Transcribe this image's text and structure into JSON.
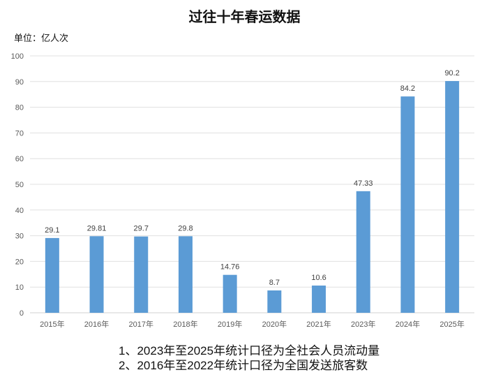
{
  "chart_data": {
    "type": "bar",
    "title": "过往十年春运数据",
    "unit_label": "单位：亿人次",
    "categories": [
      "2015年",
      "2016年",
      "2017年",
      "2018年",
      "2019年",
      "2020年",
      "2021年",
      "2023年",
      "2024年",
      "2025年"
    ],
    "values": [
      29.1,
      29.81,
      29.7,
      29.8,
      14.76,
      8.7,
      10.6,
      47.33,
      84.2,
      90.2
    ],
    "data_labels": [
      "29.1",
      "29.81",
      "29.7",
      "29.8",
      "14.76",
      "8.7",
      "10.6",
      "47.33",
      "84.2",
      "90.2"
    ],
    "ylim": [
      0,
      100
    ],
    "yticks": [
      0,
      10,
      20,
      30,
      40,
      50,
      60,
      70,
      80,
      90,
      100
    ],
    "grid": true,
    "bar_color": "#5b9bd5",
    "notes": [
      "1、2023年至2025年统计口径为全社会人员流动量",
      "2、2016年至2022年统计口径为全国发送旅客数"
    ]
  }
}
